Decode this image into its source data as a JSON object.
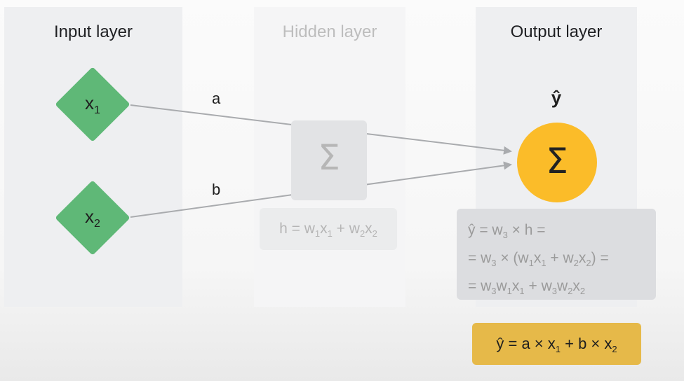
{
  "columns": {
    "input": {
      "title": "Input layer"
    },
    "hidden": {
      "title": "Hidden layer"
    },
    "output": {
      "title": "Output layer"
    }
  },
  "nodes": {
    "x1": {
      "base": "x",
      "sub": "1"
    },
    "x2": {
      "base": "x",
      "sub": "2"
    },
    "hidden_symbol": "Σ",
    "output_symbol": "Σ",
    "output_label": "ŷ"
  },
  "edges": {
    "a": "a",
    "b": "b"
  },
  "formulas": {
    "hidden": [
      "h = w",
      "1",
      "x",
      "1",
      " + w",
      "2",
      "x",
      "2"
    ],
    "output_line1": [
      "ŷ = w",
      "3",
      " × h ="
    ],
    "output_line2": [
      "= w",
      "3",
      " × (w",
      "1",
      "x",
      "1",
      " + w",
      "2",
      "x",
      "2",
      ") ="
    ],
    "output_line3": [
      "= w",
      "3",
      "w",
      "1",
      "x",
      "1",
      " + w",
      "3",
      "w",
      "2",
      "x",
      "2"
    ],
    "result": [
      "ŷ = a × x",
      "1",
      " + b × x",
      "2"
    ]
  },
  "colors": {
    "input_node": "#5fb877",
    "output_node": "#fbbc29",
    "result_box": "#e6b949",
    "arrow": "#a9abae"
  }
}
